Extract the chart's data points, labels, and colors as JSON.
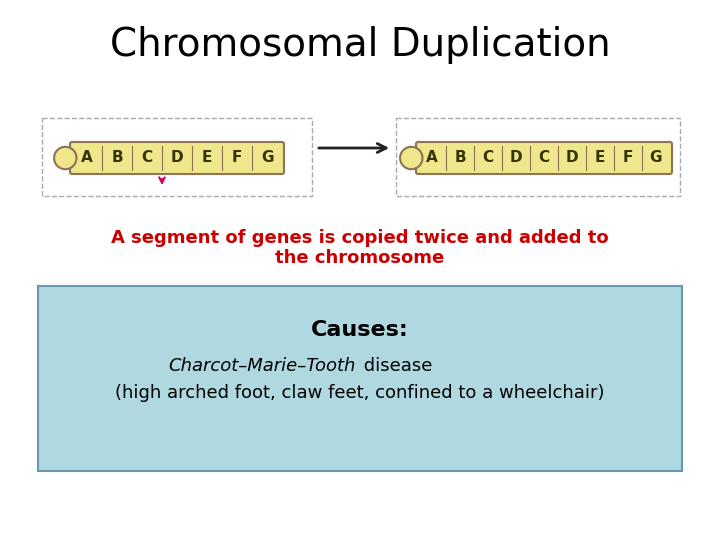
{
  "title": "Chromosomal Duplication",
  "title_fontsize": 28,
  "bg_color": "#ffffff",
  "chromosome_fill": "#f0e68c",
  "chromosome_edge": "#8b7355",
  "gene_labels_left": [
    "A",
    "B",
    "C",
    "D",
    "E",
    "F",
    "G"
  ],
  "gene_labels_right": [
    "A",
    "B",
    "C",
    "D",
    "C",
    "D",
    "E",
    "F",
    "G"
  ],
  "dashed_box_color": "#aaaaaa",
  "arrow_color": "#222222",
  "red_arrow_color": "#cc0066",
  "description_text_line1": "A segment of genes is copied twice and added to",
  "description_text_line2": "the chromosome",
  "description_color": "#cc0000",
  "description_fontsize": 13,
  "causes_box_color": "#b0d8e0",
  "causes_box_edge": "#6699aa",
  "causes_title": "Causes:",
  "causes_title_fontsize": 16,
  "causes_line1_italic": "Charcot–Marie–Tooth",
  "causes_line1_regular": " disease",
  "causes_line2": "(high arched foot, claw feet, confined to a wheelchair)",
  "causes_fontsize": 13
}
